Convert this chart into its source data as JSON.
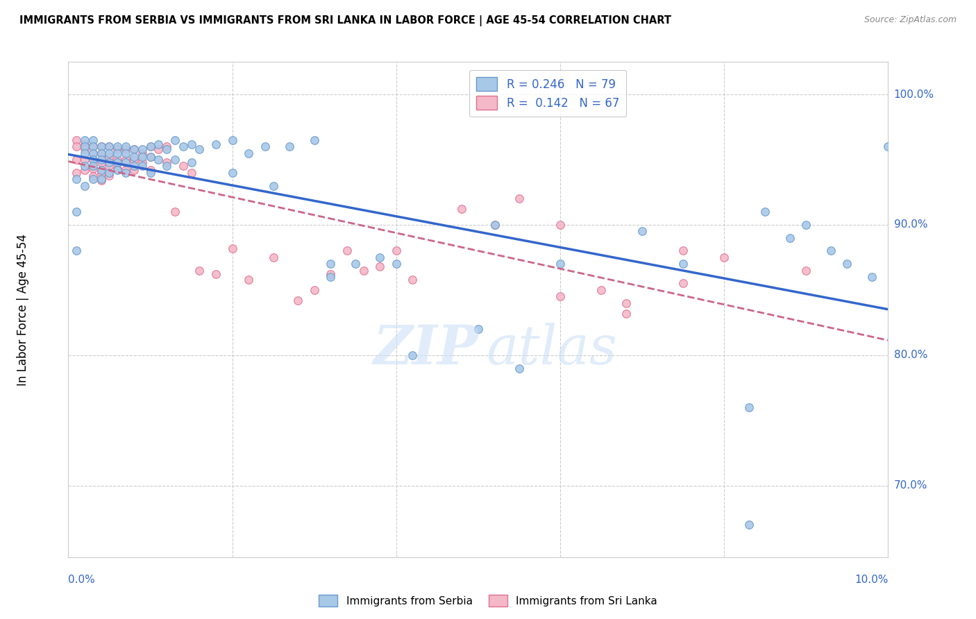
{
  "title": "IMMIGRANTS FROM SERBIA VS IMMIGRANTS FROM SRI LANKA IN LABOR FORCE | AGE 45-54 CORRELATION CHART",
  "source": "Source: ZipAtlas.com",
  "ylabel": "In Labor Force | Age 45-54",
  "serbia_color_fill": "#a8c8e8",
  "serbia_color_edge": "#6699cc",
  "srilanka_color_fill": "#f4b8c8",
  "srilanka_color_edge": "#e07090",
  "serbia_line_color": "#3366cc",
  "srilanka_line_color": "#cc6688",
  "xlim": [
    0.0,
    0.1
  ],
  "ylim": [
    0.645,
    1.025
  ],
  "grid_yticks": [
    0.7,
    0.8,
    0.9,
    1.0
  ],
  "grid_xticks": [
    0.0,
    0.02,
    0.04,
    0.06,
    0.08,
    0.1
  ],
  "right_ylabels": [
    "70.0%",
    "80.0%",
    "90.0%",
    "100.0%"
  ],
  "serbia_x": [
    0.001,
    0.001,
    0.001,
    0.002,
    0.002,
    0.002,
    0.002,
    0.002,
    0.003,
    0.003,
    0.003,
    0.003,
    0.003,
    0.003,
    0.004,
    0.004,
    0.004,
    0.004,
    0.004,
    0.005,
    0.005,
    0.005,
    0.005,
    0.006,
    0.006,
    0.006,
    0.006,
    0.007,
    0.007,
    0.007,
    0.007,
    0.008,
    0.008,
    0.008,
    0.009,
    0.009,
    0.009,
    0.01,
    0.01,
    0.01,
    0.011,
    0.011,
    0.012,
    0.012,
    0.013,
    0.013,
    0.014,
    0.015,
    0.015,
    0.016,
    0.018,
    0.02,
    0.02,
    0.022,
    0.024,
    0.025,
    0.027,
    0.03,
    0.032,
    0.032,
    0.035,
    0.038,
    0.04,
    0.042,
    0.05,
    0.052,
    0.055,
    0.06,
    0.07,
    0.075,
    0.083,
    0.085,
    0.088,
    0.09,
    0.093,
    0.095,
    0.098,
    0.1,
    0.083
  ],
  "serbia_y": [
    0.935,
    0.91,
    0.88,
    0.965,
    0.96,
    0.955,
    0.945,
    0.93,
    0.965,
    0.96,
    0.955,
    0.95,
    0.945,
    0.935,
    0.96,
    0.955,
    0.95,
    0.942,
    0.935,
    0.96,
    0.955,
    0.948,
    0.94,
    0.96,
    0.955,
    0.948,
    0.942,
    0.96,
    0.955,
    0.948,
    0.94,
    0.958,
    0.952,
    0.945,
    0.958,
    0.952,
    0.945,
    0.96,
    0.952,
    0.94,
    0.962,
    0.95,
    0.958,
    0.945,
    0.965,
    0.95,
    0.96,
    0.962,
    0.948,
    0.958,
    0.962,
    0.965,
    0.94,
    0.955,
    0.96,
    0.93,
    0.96,
    0.965,
    0.87,
    0.86,
    0.87,
    0.875,
    0.87,
    0.8,
    0.82,
    0.9,
    0.79,
    0.87,
    0.895,
    0.87,
    0.76,
    0.91,
    0.89,
    0.9,
    0.88,
    0.87,
    0.86,
    0.96,
    0.67
  ],
  "srilanka_x": [
    0.001,
    0.001,
    0.001,
    0.001,
    0.002,
    0.002,
    0.002,
    0.002,
    0.003,
    0.003,
    0.003,
    0.003,
    0.003,
    0.004,
    0.004,
    0.004,
    0.004,
    0.004,
    0.005,
    0.005,
    0.005,
    0.005,
    0.006,
    0.006,
    0.006,
    0.007,
    0.007,
    0.007,
    0.008,
    0.008,
    0.008,
    0.009,
    0.009,
    0.01,
    0.01,
    0.01,
    0.011,
    0.012,
    0.012,
    0.013,
    0.014,
    0.015,
    0.016,
    0.018,
    0.02,
    0.022,
    0.025,
    0.028,
    0.03,
    0.032,
    0.034,
    0.036,
    0.038,
    0.04,
    0.042,
    0.048,
    0.052,
    0.055,
    0.06,
    0.065,
    0.068,
    0.075,
    0.06,
    0.068,
    0.075,
    0.08,
    0.09
  ],
  "srilanka_y": [
    0.965,
    0.96,
    0.95,
    0.94,
    0.962,
    0.958,
    0.95,
    0.942,
    0.96,
    0.955,
    0.95,
    0.943,
    0.937,
    0.96,
    0.955,
    0.948,
    0.94,
    0.934,
    0.96,
    0.952,
    0.945,
    0.938,
    0.958,
    0.95,
    0.943,
    0.958,
    0.95,
    0.942,
    0.958,
    0.95,
    0.942,
    0.955,
    0.948,
    0.96,
    0.952,
    0.942,
    0.958,
    0.96,
    0.948,
    0.91,
    0.945,
    0.94,
    0.865,
    0.862,
    0.882,
    0.858,
    0.875,
    0.842,
    0.85,
    0.862,
    0.88,
    0.865,
    0.868,
    0.88,
    0.858,
    0.912,
    0.9,
    0.92,
    0.9,
    0.85,
    0.84,
    0.855,
    0.845,
    0.832,
    0.88,
    0.875,
    0.865
  ]
}
